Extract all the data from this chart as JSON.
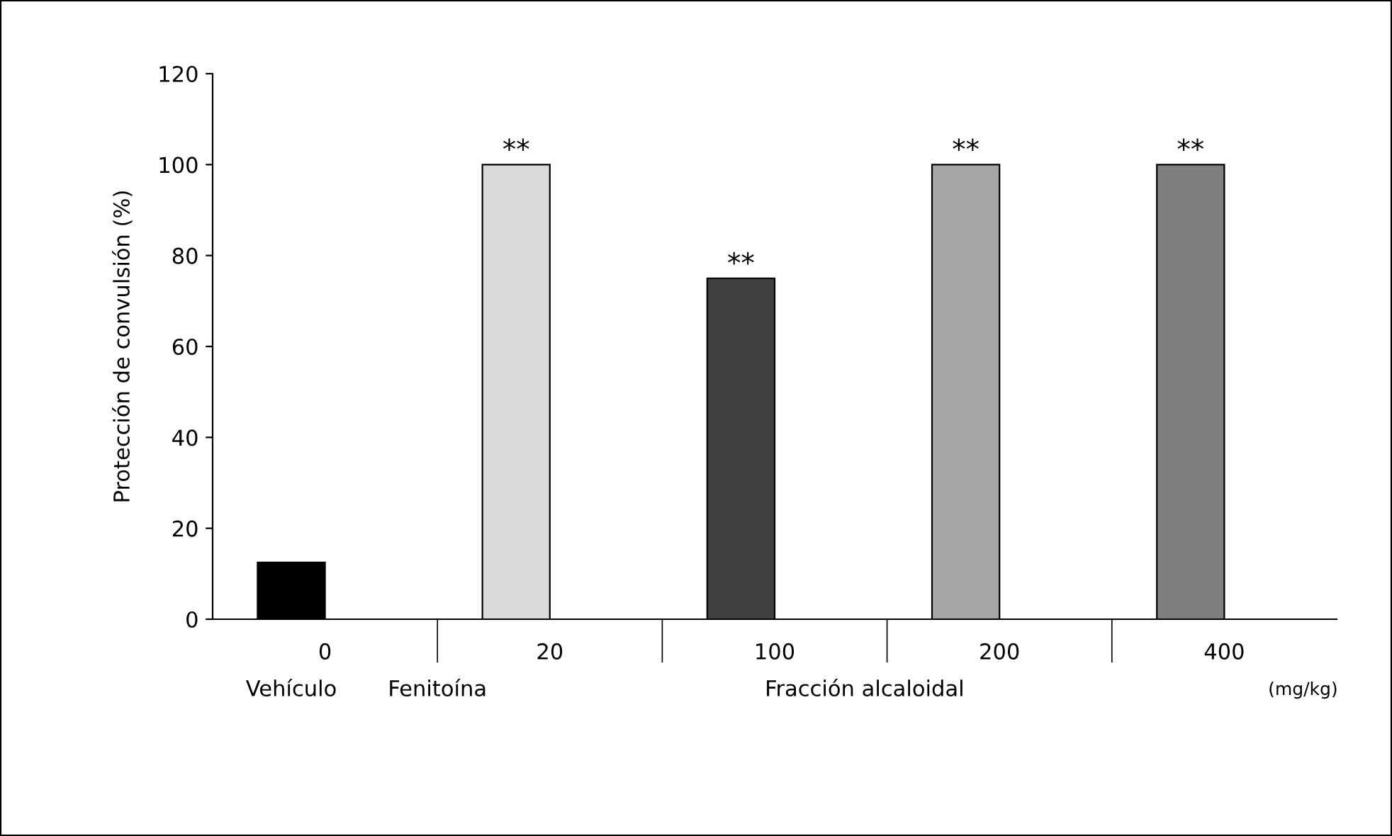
{
  "chart_data": {
    "type": "bar",
    "ylabel": "Protección de convulsión (%)",
    "categories": [
      "0",
      "20",
      "100",
      "200",
      "400"
    ],
    "values": [
      12.5,
      100,
      75,
      100,
      100
    ],
    "colors": [
      "#000000",
      "#d9d9d9",
      "#404040",
      "#a6a6a6",
      "#7f7f7f"
    ],
    "ylim": [
      0,
      120
    ],
    "yticks": [
      0,
      20,
      40,
      60,
      80,
      100,
      120
    ],
    "grid": false,
    "annotations": [
      {
        "text": "**",
        "x": "20",
        "y": 100
      },
      {
        "text": "**",
        "x": "100",
        "y": 75
      },
      {
        "text": "**",
        "x": "200",
        "y": 100
      },
      {
        "text": "**",
        "x": "400",
        "y": 100
      },
      "Vehículo",
      "Fenitoína",
      "Fracción alcaloidal",
      "(mg/kg)"
    ]
  }
}
